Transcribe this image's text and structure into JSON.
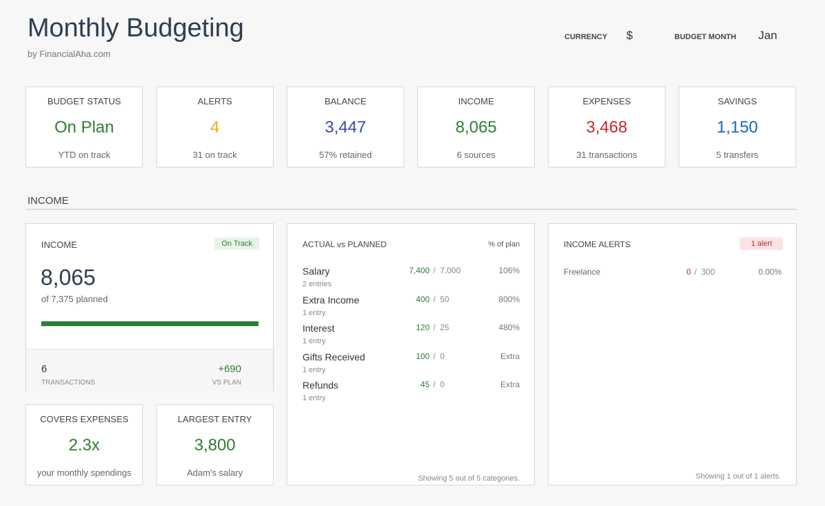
{
  "header": {
    "title": "Monthly Budgeting",
    "subtitle": "by FinancialAha.com",
    "currency_label": "CURRENCY",
    "currency": "$",
    "month_label": "BUDGET MONTH",
    "month": "Jan"
  },
  "kpis": [
    {
      "label": "BUDGET STATUS",
      "value": "On Plan",
      "note": "YTD on track",
      "color": "#2e7d32"
    },
    {
      "label": "ALERTS",
      "value": "4",
      "note": "31 on track",
      "color": "#f4a623"
    },
    {
      "label": "BALANCE",
      "value": "3,447",
      "note": "57% retained",
      "color": "#3949ab"
    },
    {
      "label": "INCOME",
      "value": "8,065",
      "note": "6 sources",
      "color": "#2e7d32"
    },
    {
      "label": "EXPENSES",
      "value": "3,468",
      "note": "31 transactions",
      "color": "#c62828"
    },
    {
      "label": "SAVINGS",
      "value": "1,150",
      "note": "5 transfers",
      "color": "#1565c0"
    }
  ],
  "section": "INCOME",
  "income_card": {
    "label": "INCOME",
    "badge": "On Track",
    "value": "8,065",
    "planned": "of 7,375 planned",
    "stats": [
      {
        "value": "6",
        "label": "TRANSACTIONS"
      },
      {
        "value": "+690",
        "label": "VS PLAN"
      }
    ]
  },
  "small_cards": [
    {
      "label": "COVERS EXPENSES",
      "value": "2.3x",
      "note": "your monthly spendings"
    },
    {
      "label": "LARGEST ENTRY",
      "value": "3,800",
      "note": "Adam's salary"
    }
  ],
  "separator": "/",
  "actual_vs_planned": {
    "title": "ACTUAL vs PLANNED",
    "header_right": "% of plan",
    "rows": [
      {
        "name": "Salary",
        "entries": "2 entries",
        "actual": "7,400",
        "planned": "7,000",
        "pct": "106%"
      },
      {
        "name": "Extra Income",
        "entries": "1 entry",
        "actual": "400",
        "planned": "50",
        "pct": "800%"
      },
      {
        "name": "Interest",
        "entries": "1 entry",
        "actual": "120",
        "planned": "25",
        "pct": "480%"
      },
      {
        "name": "Gifts Received",
        "entries": "1 entry",
        "actual": "100",
        "planned": "0",
        "pct": "Extra"
      },
      {
        "name": "Refunds",
        "entries": "1 entry",
        "actual": "45",
        "planned": "0",
        "pct": "Extra"
      }
    ],
    "footer": "Showing 5 out of 5 categories."
  },
  "income_alerts": {
    "title": "INCOME ALERTS",
    "badge": "1 alert",
    "rows": [
      {
        "name": "Freelance",
        "actual": "0",
        "planned": "300",
        "pct": "0.00%"
      }
    ],
    "footer": "Showing 1 out of 1 alerts."
  }
}
